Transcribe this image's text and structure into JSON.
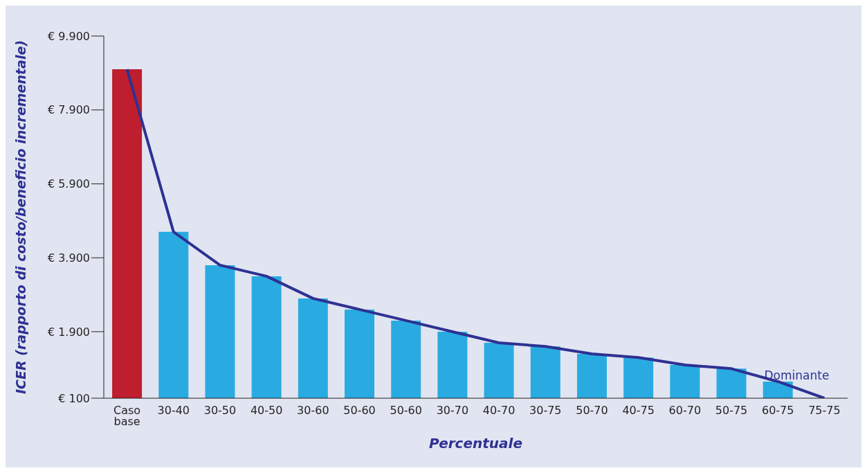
{
  "chart_data": {
    "type": "bar",
    "xlabel": "Percentuale",
    "ylabel": "ICER (rapporto di costo/beneficio incrementale)",
    "categories": [
      "Caso base",
      "30-40",
      "30-50",
      "40-50",
      "30-60",
      "50-60",
      "50-60",
      "30-70",
      "40-70",
      "30-75",
      "50-70",
      "40-75",
      "60-70",
      "50-75",
      "60-75",
      "75-75"
    ],
    "series": [
      {
        "colors": [
          "#be1e2d",
          "#29abe2",
          "#29abe2",
          "#29abe2",
          "#29abe2",
          "#29abe2",
          "#29abe2",
          "#29abe2",
          "#29abe2",
          "#29abe2",
          "#29abe2",
          "#29abe2",
          "#29abe2",
          "#29abe2",
          "#29abe2",
          "#f7941d"
        ],
        "values": [
          9000,
          4600,
          3700,
          3400,
          2800,
          2500,
          2200,
          1900,
          1600,
          1500,
          1300,
          1200,
          1000,
          900,
          550,
          100
        ]
      },
      {
        "type": "line",
        "color": "#2e3192",
        "values": [
          9000,
          4600,
          3700,
          3400,
          2800,
          2500,
          2200,
          1900,
          1600,
          1500,
          1300,
          1200,
          1000,
          900,
          550,
          100
        ]
      }
    ],
    "ylim": [
      100,
      9900
    ],
    "yticks": [
      {
        "value": 100,
        "label": "€ 100"
      },
      {
        "value": 1900,
        "label": "€ 1.900"
      },
      {
        "value": 3900,
        "label": "€ 3.900"
      },
      {
        "value": 5900,
        "label": "€ 5.900"
      },
      {
        "value": 7900,
        "label": "€ 7.900"
      },
      {
        "value": 9900,
        "label": "€ 9.900"
      }
    ],
    "grid": false,
    "legend": false,
    "marker": "none",
    "annotations": [
      {
        "text": "Dominante",
        "x": "75-75",
        "y": 100
      }
    ]
  }
}
